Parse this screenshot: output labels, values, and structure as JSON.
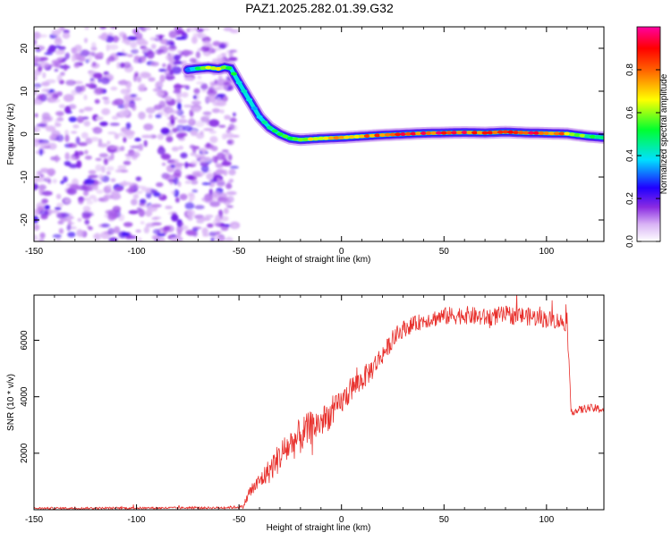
{
  "title": "PAZ1.2025.282.01.39.G32",
  "colors": {
    "axis": "#000000",
    "snr_line": "#e8302c",
    "background": "#ffffff"
  },
  "chart_data": [
    {
      "type": "heatmap",
      "xlabel": "Height of straight line (km)",
      "ylabel": "Frequency (Hz)",
      "xlim": [
        -150,
        128
      ],
      "ylim": [
        -25,
        25
      ],
      "xticks": [
        -150,
        -100,
        -50,
        0,
        50,
        100
      ],
      "yticks": [
        -20,
        -10,
        0,
        10,
        20
      ],
      "colorbar": {
        "label": "Normalized spectral amplitude",
        "range": [
          0,
          1
        ],
        "ticks": [
          "0.0",
          "0.2",
          "0.4",
          "0.6",
          "0.8"
        ],
        "tick_values": [
          0,
          0.2,
          0.4,
          0.6,
          0.8
        ],
        "colors": [
          "#ffffff",
          "#c27bf0",
          "#6000ff",
          "#0000ff",
          "#00e0ff",
          "#00ff30",
          "#ffff00",
          "#ff8000",
          "#ff0000",
          "#ff00a0"
        ]
      },
      "ridge": {
        "x": [
          -75,
          -70,
          -65,
          -60,
          -57,
          -54,
          -50,
          -45,
          -40,
          -35,
          -30,
          -25,
          -20,
          -10,
          0,
          10,
          20,
          30,
          40,
          50,
          60,
          70,
          80,
          90,
          100,
          110,
          120,
          128
        ],
        "y": [
          15,
          15.3,
          15.5,
          15.2,
          15.6,
          15.3,
          12,
          8,
          4,
          1.5,
          0,
          -1,
          -1.3,
          -1,
          -0.8,
          -0.5,
          -0.2,
          0,
          0.2,
          0.3,
          0.4,
          0.3,
          0.5,
          0.3,
          0.2,
          0.1,
          -0.5,
          -0.8
        ],
        "amplitude": [
          0.35,
          0.55,
          0.75,
          0.7,
          0.6,
          0.55,
          0.45,
          0.4,
          0.45,
          0.5,
          0.6,
          0.55,
          0.65,
          0.7,
          0.75,
          0.8,
          0.85,
          0.9,
          0.92,
          0.95,
          0.93,
          0.9,
          0.88,
          0.92,
          0.9,
          0.8,
          0.55,
          0.45
        ]
      },
      "noise_region": {
        "x_range": [
          -150,
          -52
        ],
        "y_range": [
          -25,
          25
        ],
        "amplitude_range": [
          0.05,
          0.25
        ]
      }
    },
    {
      "type": "line",
      "xlabel": "Height of straight line (km)",
      "ylabel": "SNR (10 * v/v)",
      "xlim": [
        -150,
        128
      ],
      "ylim": [
        0,
        7600
      ],
      "xticks": [
        -150,
        -100,
        -50,
        0,
        50,
        100
      ],
      "yticks": [
        2000,
        4000,
        6000
      ],
      "series": [
        {
          "name": "SNR",
          "x": [
            -150,
            -100,
            -60,
            -48,
            -45,
            -40,
            -35,
            -30,
            -25,
            -20,
            -15,
            -10,
            -5,
            0,
            5,
            10,
            15,
            20,
            25,
            30,
            40,
            50,
            60,
            70,
            80,
            90,
            100,
            105,
            110,
            111,
            112,
            115,
            120,
            128
          ],
          "y": [
            50,
            60,
            70,
            100,
            600,
            1000,
            1400,
            1900,
            2300,
            2600,
            2900,
            3100,
            3400,
            3800,
            4300,
            4600,
            5000,
            5500,
            6000,
            6400,
            6700,
            6850,
            6900,
            6800,
            6900,
            6850,
            6750,
            6700,
            6600,
            5000,
            3500,
            3500,
            3600,
            3550
          ],
          "noise_amplitude": [
            40,
            40,
            40,
            60,
            250,
            300,
            450,
            550,
            600,
            650,
            600,
            550,
            500,
            450,
            450,
            400,
            400,
            350,
            300,
            300,
            280,
            320,
            320,
            320,
            320,
            320,
            320,
            300,
            300,
            200,
            150,
            150,
            150,
            150
          ]
        }
      ]
    }
  ]
}
